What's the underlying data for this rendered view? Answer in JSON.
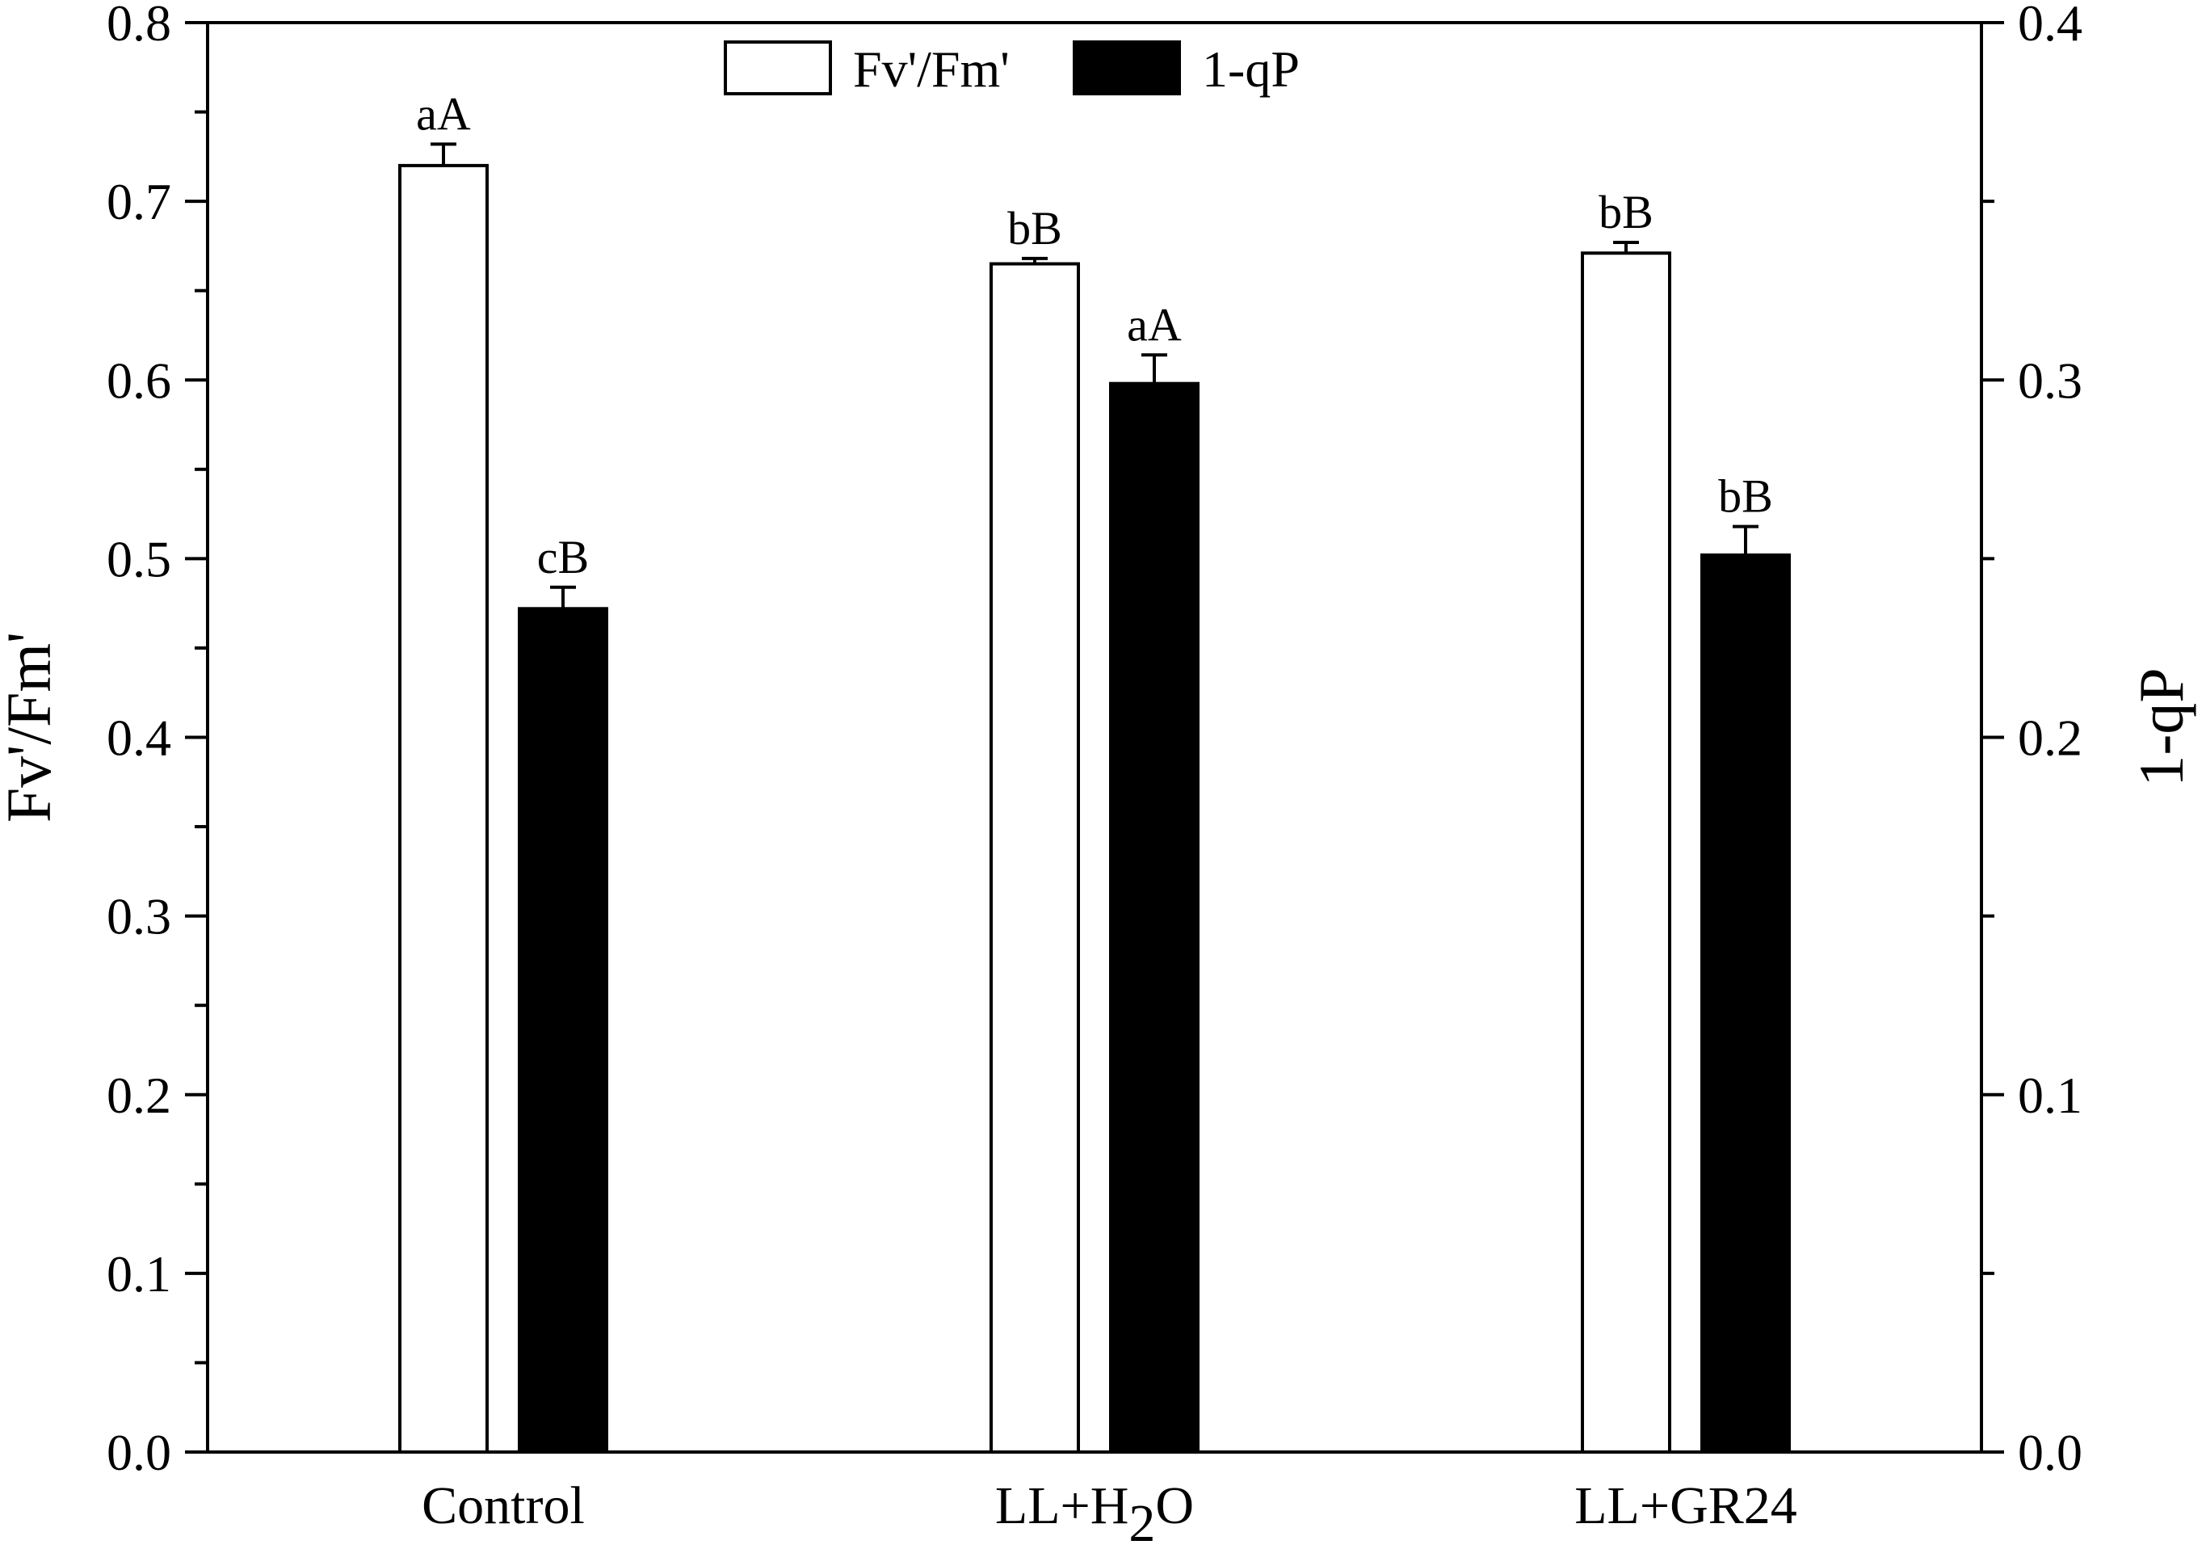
{
  "chart_data": {
    "type": "bar",
    "categories": [
      "Control",
      "LL+H2O",
      "LL+GR24"
    ],
    "x_tick_labels": [
      {
        "main": "Control",
        "sub": "",
        "tail": ""
      },
      {
        "main": "LL+H",
        "sub": "2",
        "tail": "O"
      },
      {
        "main": "LL+GR24",
        "sub": "",
        "tail": ""
      }
    ],
    "ylabel_left": "Fv'/Fm'",
    "ylabel_right": "1-qP",
    "ylim_left": [
      0,
      0.8
    ],
    "ylim_right": [
      0,
      0.4
    ],
    "left_ticks": [
      "0.0",
      "0.1",
      "0.2",
      "0.3",
      "0.4",
      "0.5",
      "0.6",
      "0.7",
      "0.8"
    ],
    "right_ticks": [
      "0.0",
      "0.1",
      "0.2",
      "0.3",
      "0.4"
    ],
    "grid": false,
    "legend_position": "top-center",
    "series": [
      {
        "name": "Fv'/Fm'",
        "axis": "left",
        "fill": "#ffffff",
        "values": [
          0.72,
          0.665,
          0.671
        ],
        "errors": [
          0.012,
          0.003,
          0.006
        ],
        "labels": [
          "aA",
          "bB",
          "bB"
        ]
      },
      {
        "name": "1-qP",
        "axis": "right",
        "fill": "#000000",
        "values": [
          0.236,
          0.299,
          0.251
        ],
        "errors": [
          0.006,
          0.008,
          0.008
        ],
        "labels": [
          "cB",
          "aA",
          "bB"
        ]
      }
    ]
  }
}
